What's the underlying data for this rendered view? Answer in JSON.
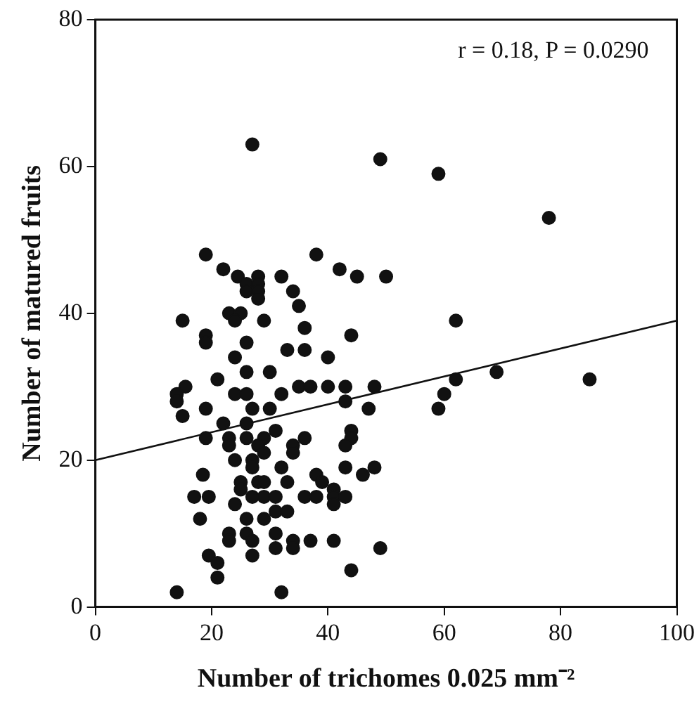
{
  "chart_data": {
    "type": "scatter",
    "xlabel": "Number of trichomes 0.025 mm⁻²",
    "ylabel": "Number of matured fruits",
    "annotations": [
      "r = 0.18, P = 0.0290"
    ],
    "xlim": [
      0,
      100
    ],
    "ylim": [
      0,
      80
    ],
    "xticks": [
      0,
      20,
      40,
      60,
      80,
      100
    ],
    "yticks": [
      0,
      20,
      40,
      60,
      80
    ],
    "grid": false,
    "legend": false,
    "series": [
      {
        "marker": "circle",
        "color": "#111111",
        "x": [
          27,
          49,
          19,
          38,
          22,
          24.5,
          28,
          32,
          42,
          45,
          50,
          26,
          28,
          26,
          28,
          34,
          28,
          35,
          15,
          23,
          25,
          24,
          29,
          36,
          44,
          19,
          19,
          26,
          33,
          36,
          24,
          40,
          26,
          30,
          21,
          15.5,
          14,
          14,
          24,
          26,
          32,
          35,
          37,
          40,
          43,
          48,
          19,
          27,
          30,
          43,
          47,
          15,
          22,
          26,
          19,
          23,
          26,
          29,
          31,
          36,
          44,
          44,
          23,
          28,
          34,
          34,
          43,
          29,
          24,
          27,
          27,
          32,
          43,
          48,
          18.5,
          25,
          28,
          29,
          33,
          38,
          39,
          46,
          41,
          17,
          19.5,
          25,
          27,
          29,
          31,
          36,
          38,
          41,
          43,
          24,
          41,
          31,
          33,
          18,
          26,
          29,
          23,
          23,
          26,
          27,
          31,
          31,
          34,
          34,
          37,
          41,
          27,
          19.5,
          21,
          49,
          44,
          21,
          14,
          32,
          59,
          78,
          62,
          62,
          69,
          60,
          59,
          85
        ],
        "values": [
          63,
          61,
          48,
          48,
          46,
          45,
          45,
          45,
          46,
          45,
          45,
          44,
          44,
          43,
          43,
          43,
          42,
          41,
          39,
          40,
          40,
          39,
          39,
          38,
          37,
          37,
          36,
          36,
          35,
          35,
          34,
          34,
          32,
          32,
          31,
          30,
          29,
          28,
          29,
          29,
          29,
          30,
          30,
          30,
          30,
          30,
          27,
          27,
          27,
          28,
          27,
          26,
          25,
          25,
          23,
          23,
          23,
          23,
          24,
          23,
          24,
          23,
          22,
          22,
          22,
          21,
          22,
          21,
          20,
          20,
          19,
          19,
          19,
          19,
          18,
          17,
          17,
          17,
          17,
          18,
          17,
          18,
          16,
          15,
          15,
          16,
          15,
          15,
          15,
          15,
          15,
          15,
          15,
          14,
          14,
          13,
          13,
          12,
          12,
          12,
          10,
          9,
          10,
          9,
          10,
          8,
          9,
          8,
          9,
          9,
          7,
          7,
          6,
          8,
          5,
          4,
          2,
          2,
          59,
          53,
          39,
          31,
          32,
          29,
          27,
          31
        ]
      },
      {
        "type": "line",
        "color": "#111111",
        "x": [
          0,
          100
        ],
        "values": [
          20,
          39
        ]
      }
    ]
  }
}
